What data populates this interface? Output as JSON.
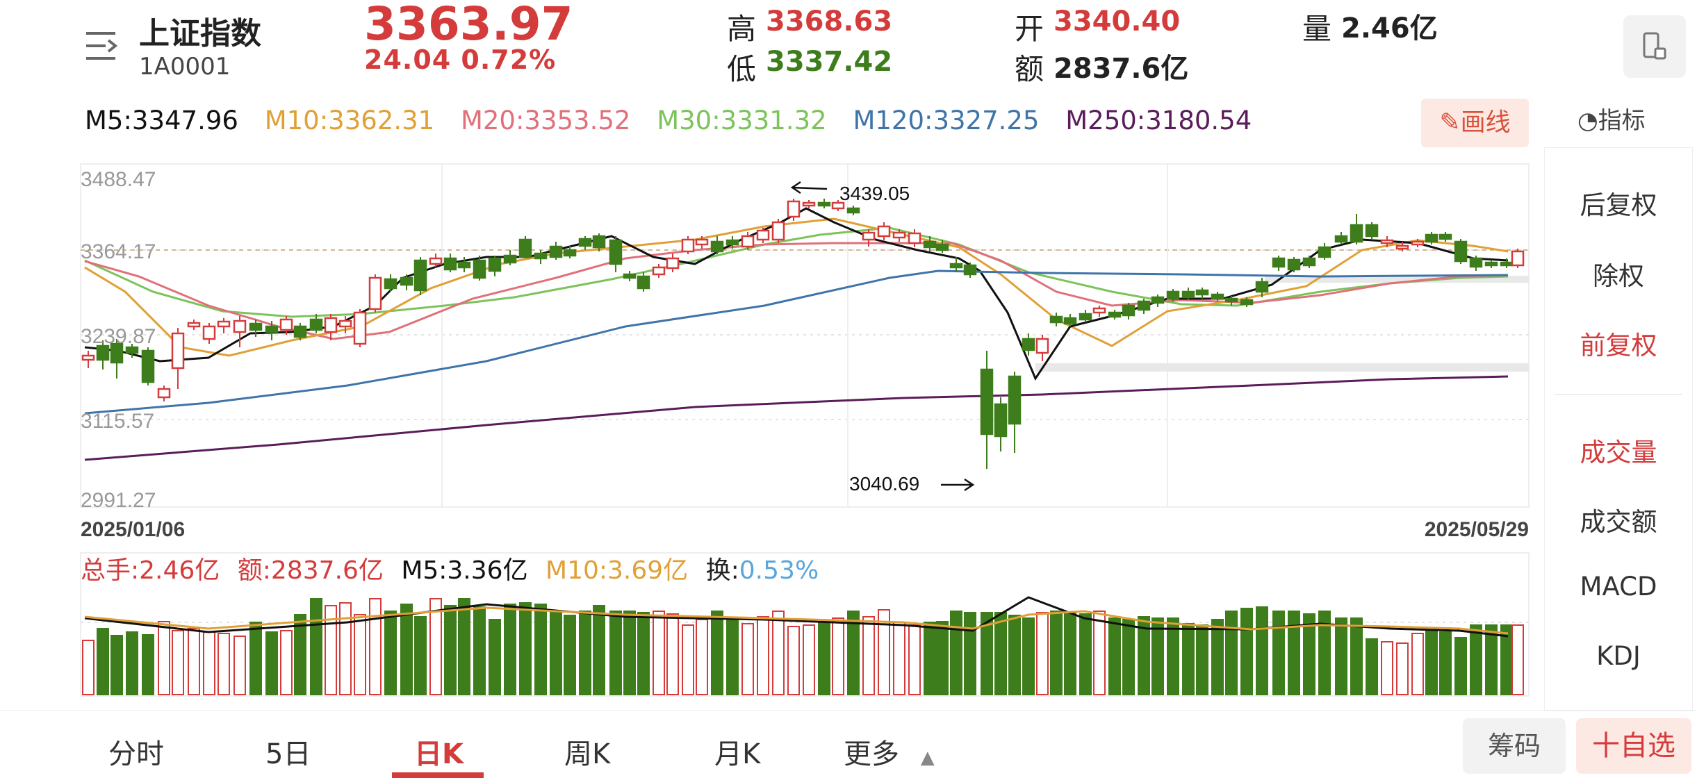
{
  "header": {
    "name": "上证指数",
    "code": "1A0001",
    "price": "3363.97",
    "change": "24.04  0.72%",
    "high_label": "高",
    "high": "3368.63",
    "low_label": "低",
    "low": "3337.42",
    "open_label": "开",
    "open": "3340.40",
    "amount_label": "额",
    "amount": "2837.6亿",
    "volume_label": "量",
    "volume": "2.46亿"
  },
  "ma_line": {
    "m5": "M5:3347.96",
    "m10": "M10:3362.31",
    "m20": "M20:3353.52",
    "m30": "M30:3331.32",
    "m120": "M120:3327.25",
    "m250": "M250:3180.54"
  },
  "draw_button": "画线",
  "indicator_button": "指标",
  "chart": {
    "y_ticks": [
      "3488.47",
      "3364.17",
      "3239.87",
      "3115.57",
      "2991.27"
    ],
    "date_start": "2025/01/06",
    "date_end": "2025/05/29",
    "high_marker": "3439.05",
    "low_marker": "3040.69"
  },
  "volume_line": {
    "total": "总手:2.46亿",
    "amount": "额:2837.6亿",
    "m5": "M5:3.36亿",
    "m10": "M10:3.69亿",
    "turnover_label": "换:",
    "turnover": "0.53%"
  },
  "sidebar": {
    "items": [
      "后复权",
      "除权",
      "前复权",
      "成交量",
      "成交额",
      "MACD",
      "KDJ"
    ],
    "active": [
      "前复权",
      "成交量"
    ]
  },
  "tabs": [
    "分时",
    "5日",
    "日K",
    "周K",
    "月K",
    "更多"
  ],
  "active_tab": "日K",
  "chip_button": "筹码",
  "add_button": "十自选",
  "colors": {
    "up": "#d43c3c",
    "down": "#3e7d1b",
    "ma5": "#111111",
    "ma10": "#e0a036",
    "ma20": "#e0707a",
    "ma30": "#7cc35a",
    "ma120": "#3f74a8",
    "ma250": "#5a1c5a",
    "turnover": "#5aa6dc"
  }
}
